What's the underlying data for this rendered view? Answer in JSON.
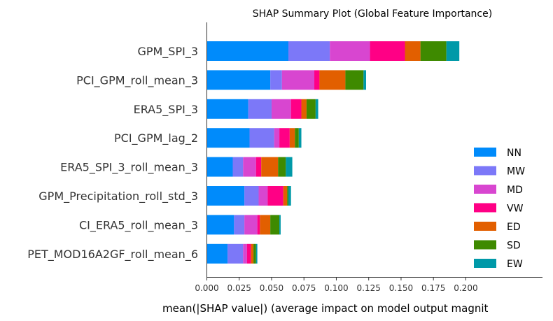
{
  "chart_data": {
    "type": "bar",
    "orientation": "horizontal",
    "stacked": true,
    "title": "SHAP Summary Plot (Global Feature Importance)",
    "xlabel": "mean(|SHAP value|) (average impact on model output magnit",
    "ylabel": "",
    "xlim": [
      0,
      0.205
    ],
    "xticks": [
      "0.000",
      "0.025",
      "0.050",
      "0.075",
      "0.100",
      "0.125",
      "0.150",
      "0.175",
      "0.200"
    ],
    "xtick_values": [
      0,
      0.025,
      0.05,
      0.075,
      0.1,
      0.125,
      0.15,
      0.175,
      0.2
    ],
    "grid": false,
    "legend_position": "lower-right",
    "categories": [
      "GPM_SPI_3",
      "PCI_GPM_roll_mean_3",
      "ERA5_SPI_3",
      "PCI_GPM_lag_2",
      "ERA5_SPI_3_roll_mean_3",
      "GPM_Precipitation_roll_std_3",
      "CI_ERA5_roll_mean_3",
      "PET_MOD16A2GF_roll_mean_6"
    ],
    "series": [
      {
        "name": "NN",
        "color": "#008bfb",
        "values": [
          0.063,
          0.049,
          0.032,
          0.033,
          0.02,
          0.029,
          0.021,
          0.016
        ]
      },
      {
        "name": "MW",
        "color": "#7c78f8",
        "values": [
          0.032,
          0.009,
          0.018,
          0.019,
          0.008,
          0.011,
          0.008,
          0.012
        ]
      },
      {
        "name": "MD",
        "color": "#d846d0",
        "values": [
          0.031,
          0.025,
          0.015,
          0.004,
          0.01,
          0.007,
          0.01,
          0.003
        ]
      },
      {
        "name": "VW",
        "color": "#ff0085",
        "values": [
          0.027,
          0.004,
          0.008,
          0.008,
          0.004,
          0.012,
          0.002,
          0.003
        ]
      },
      {
        "name": "ED",
        "color": "#e25f00",
        "values": [
          0.012,
          0.02,
          0.004,
          0.004,
          0.013,
          0.003,
          0.008,
          0.002
        ]
      },
      {
        "name": "SD",
        "color": "#3e8a00",
        "values": [
          0.02,
          0.014,
          0.007,
          0.003,
          0.006,
          0.001,
          0.007,
          0.002
        ]
      },
      {
        "name": "EW",
        "color": "#0099a8",
        "values": [
          0.01,
          0.002,
          0.002,
          0.002,
          0.005,
          0.002,
          0.001,
          0.001
        ]
      }
    ]
  }
}
